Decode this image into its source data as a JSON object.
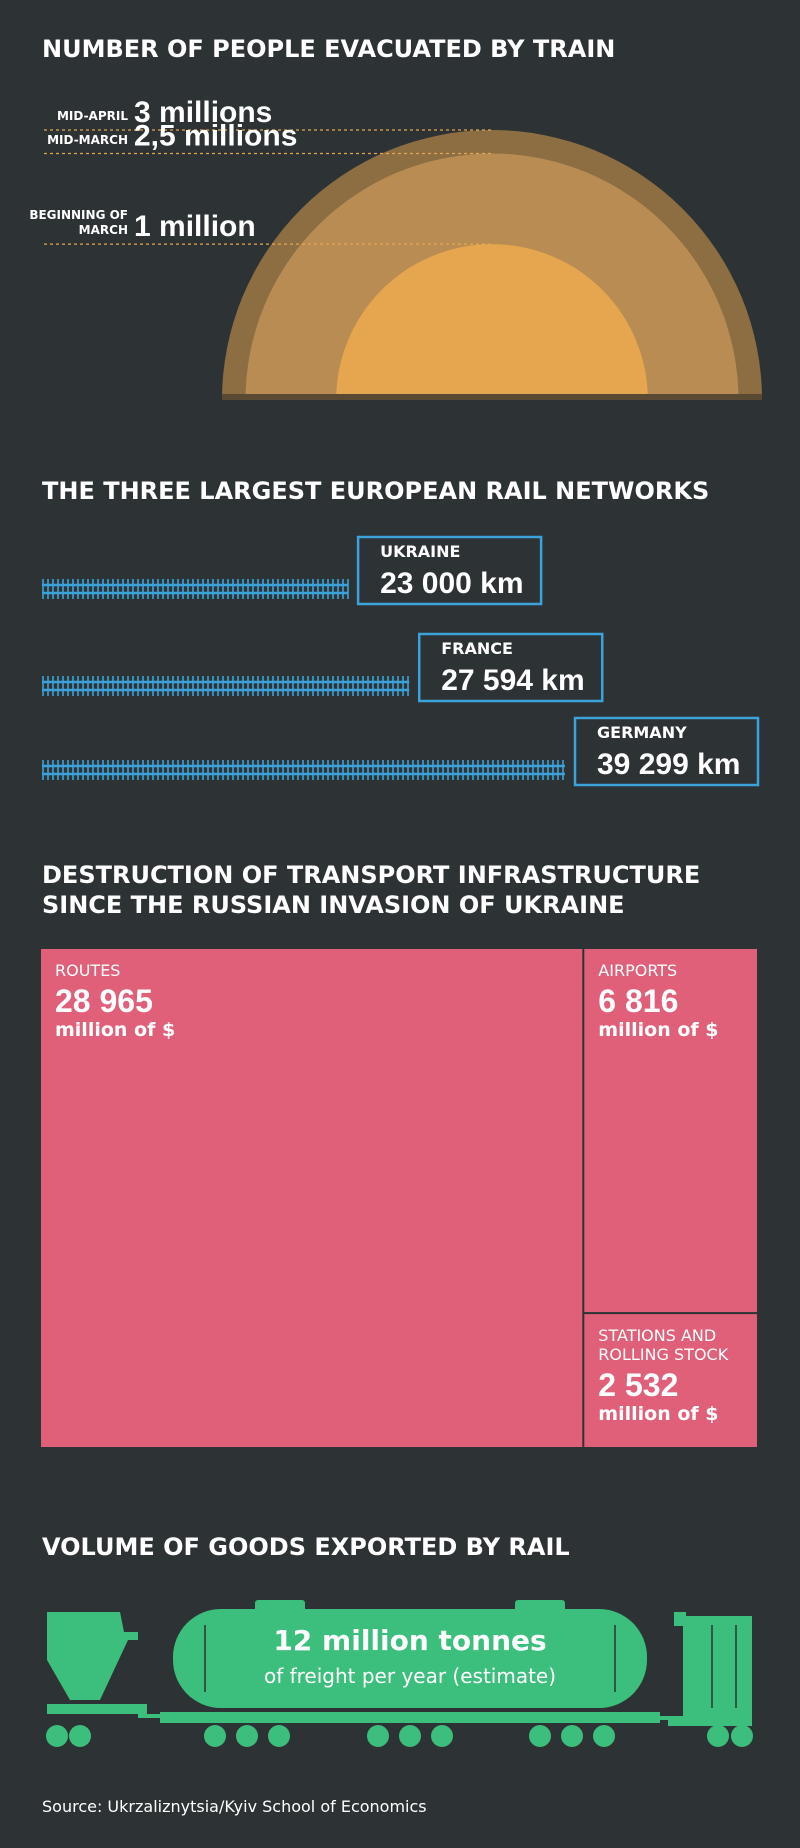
{
  "chart_data": [
    {
      "type": "semicircle",
      "title": "NUMBER OF PEOPLE EVACUATED BY TRAIN",
      "categories": [
        "MID-APRIL",
        "MID-MARCH",
        "BEGINNING OF MARCH"
      ],
      "values": [
        3,
        2.5,
        1
      ],
      "value_labels": [
        "3 millions",
        "2,5 millions",
        "1 million"
      ],
      "colors": [
        "#8d6d42",
        "#b88c52",
        "#e6a64f"
      ]
    },
    {
      "type": "rail",
      "title": "THE THREE LARGEST EUROPEAN RAIL NETWORKS",
      "categories": [
        "UKRAINE",
        "FRANCE",
        "GERMANY"
      ],
      "values": [
        23000,
        27594,
        39299
      ],
      "value_labels": [
        "23 000 km",
        "27 594 km",
        "39 299 km"
      ],
      "color": "#3ba3d9"
    },
    {
      "type": "treemap",
      "title": "DESTRUCTION OF TRANSPORT INFRASTRUCTURE SINCE THE RUSSIAN INVASION OF UKRAINE",
      "categories": [
        "ROUTES",
        "AIRPORTS",
        "STATIONS AND ROLLING STOCK"
      ],
      "values": [
        28965,
        6816,
        2532
      ],
      "value_labels": [
        "28 965",
        "6 816",
        "2 532"
      ],
      "unit": "million of $",
      "color": "#e0607a"
    }
  ],
  "exports": {
    "title": "VOLUME OF GOODS EXPORTED BY RAIL",
    "headline": "12 million tonnes",
    "subline": "of freight per year (estimate)"
  },
  "source": "Source: Ukrzaliznytsia/Kyiv School of Economics"
}
